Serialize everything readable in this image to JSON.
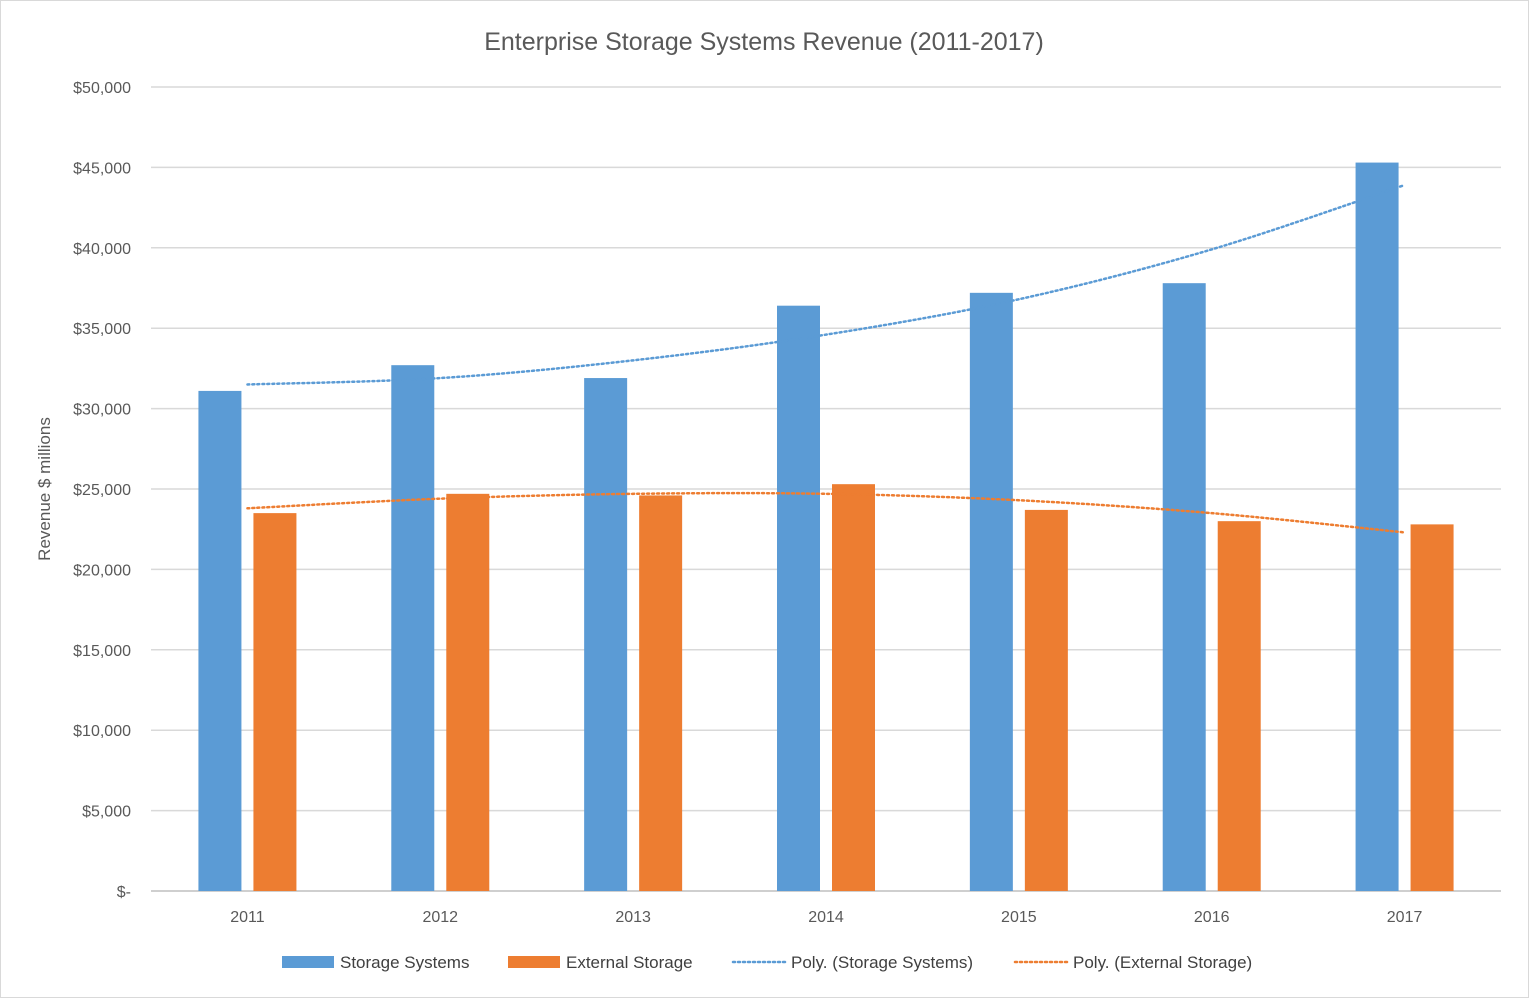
{
  "chart_data": {
    "type": "bar",
    "title": "Enterprise Storage Systems Revenue (2011-2017)",
    "xlabel": "",
    "ylabel": "Revenue $ millions",
    "categories": [
      "2011",
      "2012",
      "2013",
      "2014",
      "2015",
      "2016",
      "2017"
    ],
    "series": [
      {
        "name": "Storage Systems",
        "color": "#5b9bd5",
        "values": [
          31100,
          32700,
          31900,
          36400,
          37200,
          37800,
          45300
        ]
      },
      {
        "name": "External Storage",
        "color": "#ed7d31",
        "values": [
          23500,
          24700,
          24600,
          25300,
          23700,
          23000,
          22800
        ]
      }
    ],
    "trendlines": [
      {
        "name": "Poly.  (Storage Systems)",
        "color": "#5b9bd5",
        "style": "dotted",
        "type": "polynomial",
        "values": [
          31500,
          31900,
          33000,
          34600,
          36800,
          39900,
          43900
        ]
      },
      {
        "name": "Poly.  (External Storage)",
        "color": "#ed7d31",
        "style": "dotted",
        "type": "polynomial",
        "values": [
          23800,
          24400,
          24700,
          24700,
          24300,
          23500,
          22300
        ]
      }
    ],
    "ylim": [
      0,
      50000
    ],
    "yticks": [
      0,
      5000,
      10000,
      15000,
      20000,
      25000,
      30000,
      35000,
      40000,
      45000,
      50000
    ],
    "ytick_labels": [
      "$-",
      "$5,000",
      "$10,000",
      "$15,000",
      "$20,000",
      "$25,000",
      "$30,000",
      "$35,000",
      "$40,000",
      "$45,000",
      "$50,000"
    ],
    "grid": true,
    "legend_position": "bottom"
  }
}
